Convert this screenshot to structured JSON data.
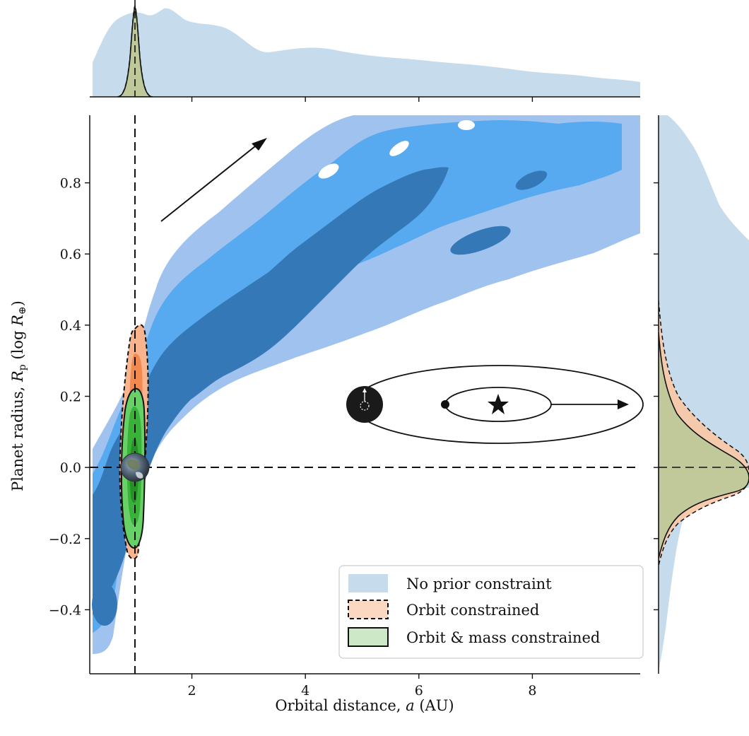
{
  "chart_data": {
    "type": "contour",
    "xlabel": "Orbital distance, a (AU)",
    "ylabel": "Planet radius, R_p (log R⊕)",
    "xlim": [
      0.2,
      9.9
    ],
    "ylim": [
      -0.58,
      0.99
    ],
    "xticks": [
      "2",
      "4",
      "6",
      "8"
    ],
    "xtick_values": [
      2,
      4,
      6,
      8
    ],
    "yticks": [
      "−0.4",
      "−0.2",
      "0.0",
      "0.2",
      "0.4",
      "0.6",
      "0.8"
    ],
    "ytick_values": [
      -0.4,
      -0.2,
      0.0,
      0.2,
      0.4,
      0.6,
      0.8
    ],
    "reference_lines": {
      "x": 1.0,
      "y": 0.0,
      "style": "dashed"
    },
    "legend_placement": "lower-right",
    "series": [
      {
        "name": "No prior constraint",
        "color": "#aac8e8",
        "contour_colors": [
          "#9fc2ee",
          "#57a9f0",
          "#3478b8"
        ],
        "ridge_points": [
          [
            0.3,
            -0.45
          ],
          [
            1.0,
            -0.1
          ],
          [
            2.0,
            0.15
          ],
          [
            3.0,
            0.3
          ],
          [
            4.0,
            0.4
          ],
          [
            5.0,
            0.5
          ],
          [
            6.0,
            0.6
          ],
          [
            7.0,
            0.7
          ],
          [
            8.0,
            0.75
          ],
          [
            9.0,
            0.82
          ],
          [
            9.9,
            0.86
          ]
        ],
        "x_marginal_peak": 1.4,
        "y_marginal_peak": 0.65
      },
      {
        "name": "Orbit constrained",
        "color": "#f9c6a4",
        "contour_colors": [
          "#f9b48e",
          "#f28a4f"
        ],
        "x_range": [
          0.8,
          1.2
        ],
        "y_range": [
          -0.25,
          0.41
        ],
        "x_marginal_peak": 1.0,
        "y_marginal_peak": 0.0
      },
      {
        "name": "Orbit & mass constrained",
        "color": "#a9d89e",
        "contour_colors": [
          "#67d067",
          "#3ab23a",
          "#259025"
        ],
        "x_range": [
          0.8,
          1.2
        ],
        "y_range": [
          -0.22,
          0.25
        ],
        "x_marginal_peak": 1.0,
        "y_marginal_peak": -0.02
      }
    ],
    "annotations": [
      {
        "kind": "arrow",
        "from": [
          1.45,
          0.7
        ],
        "to": [
          3.4,
          0.94
        ]
      },
      {
        "kind": "orbit-inset",
        "description": "star"
      },
      {
        "kind": "earth-marker",
        "at": [
          1.0,
          0.0
        ]
      }
    ]
  },
  "legend": {
    "items": [
      {
        "label": "No prior constraint"
      },
      {
        "label": "Orbit constrained"
      },
      {
        "label": "Orbit & mass constrained"
      }
    ]
  },
  "axes": {
    "xlabel_main": "Orbital distance, ",
    "xlabel_var": "a",
    "xlabel_unit": " (AU)",
    "ylabel_main": "Planet radius, ",
    "ylabel_var": "R",
    "ylabel_sub": "p",
    "ylabel_unit": " (log ",
    "ylabel_unit_var": "R",
    "ylabel_unit_sub": "⊕",
    "ylabel_close": ")"
  }
}
